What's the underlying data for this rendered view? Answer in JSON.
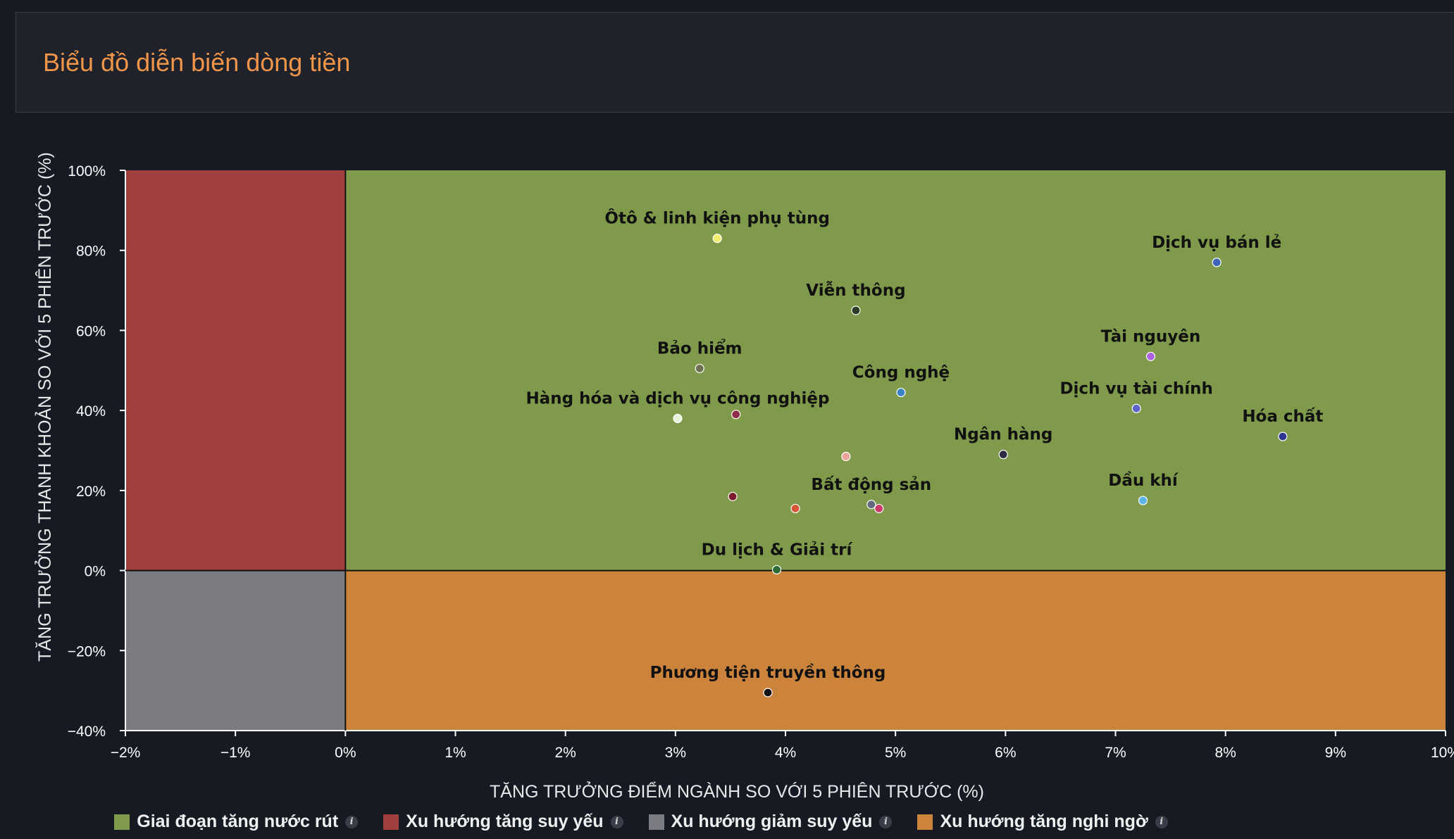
{
  "header": {
    "title": "Biểu đồ diễn biến dòng tiền"
  },
  "chart_data": {
    "type": "scatter",
    "title": "Biểu đồ diễn biến dòng tiền",
    "xlabel": "TĂNG TRƯỞNG ĐIỂM NGÀNH SO VỚI 5 PHIÊN TRƯỚC (%)",
    "ylabel": "TĂNG TRƯỞNG THANH KHOẢN SO VỚI 5 PHIÊN TRƯỚC (%)",
    "xlim": [
      -2,
      10
    ],
    "ylim": [
      -40,
      100
    ],
    "xticks": [
      "−2%",
      "−1%",
      "0%",
      "1%",
      "2%",
      "3%",
      "4%",
      "5%",
      "6%",
      "7%",
      "8%",
      "9%",
      "10%"
    ],
    "yticks": [
      "100%",
      "80%",
      "60%",
      "40%",
      "20%",
      "0%",
      "−20%",
      "−40%"
    ],
    "quadrants": [
      {
        "name": "Giai đoạn tăng nước rút",
        "color": "#7f9a4a",
        "x": [
          0,
          10
        ],
        "y": [
          0,
          100
        ]
      },
      {
        "name": "Xu hướng tăng suy yếu",
        "color": "#a0403e",
        "x": [
          -2,
          0
        ],
        "y": [
          0,
          100
        ]
      },
      {
        "name": "Xu hướng giảm suy yếu",
        "color": "#7b7c82",
        "x": [
          -2,
          0
        ],
        "y": [
          -40,
          0
        ]
      },
      {
        "name": "Xu hướng tăng nghi ngờ",
        "color": "#cc843c",
        "x": [
          0,
          10
        ],
        "y": [
          -40,
          0
        ]
      }
    ],
    "points": [
      {
        "label": "Ôtô & linh kiện phụ tùng",
        "x": 3.38,
        "y": 83,
        "color": "#f2ee6e"
      },
      {
        "label": "Dịch vụ bán lẻ",
        "x": 7.92,
        "y": 77,
        "color": "#3f63b6"
      },
      {
        "label": "Viễn thông",
        "x": 4.64,
        "y": 65,
        "color": "#2a3a26"
      },
      {
        "label": "Tài nguyên",
        "x": 7.32,
        "y": 53.5,
        "color": "#b063e0"
      },
      {
        "label": "Bảo hiểm",
        "x": 3.22,
        "y": 50.5,
        "color": "#6e6e50"
      },
      {
        "label": "Công nghệ",
        "x": 5.05,
        "y": 44.5,
        "color": "#3a82c4"
      },
      {
        "label": "Dịch vụ tài chính",
        "x": 7.19,
        "y": 40.5,
        "color": "#5b63c8"
      },
      {
        "label": "Hàng hóa và dịch vụ công nghiệp",
        "x": 3.02,
        "y": 38,
        "color": "#e8f4e0"
      },
      {
        "label": "",
        "x": 3.55,
        "y": 39,
        "color": "#8e2d4a"
      },
      {
        "label": "Hóa chất",
        "x": 8.52,
        "y": 33.5,
        "color": "#2f3590"
      },
      {
        "label": "Ngân hàng",
        "x": 5.98,
        "y": 29,
        "color": "#2c2c40"
      },
      {
        "label": "",
        "x": 4.55,
        "y": 28.5,
        "color": "#e8a39a"
      },
      {
        "label": "Dầu khí",
        "x": 7.25,
        "y": 17.5,
        "color": "#5bb4e6"
      },
      {
        "label": "Bất động sản",
        "x": 4.78,
        "y": 16.5,
        "color": "#626a7c"
      },
      {
        "label": "",
        "x": 4.85,
        "y": 15.5,
        "color": "#cc3a6a"
      },
      {
        "label": "",
        "x": 4.09,
        "y": 15.5,
        "color": "#d45636"
      },
      {
        "label": "",
        "x": 3.52,
        "y": 18.5,
        "color": "#7c1c30"
      },
      {
        "label": "Du lịch & Giải trí",
        "x": 3.92,
        "y": 0.2,
        "color": "#2e6b35"
      },
      {
        "label": "Phương tiện truyền thông",
        "x": 3.84,
        "y": -30.5,
        "color": "#111111"
      }
    ],
    "legend": [
      {
        "label": "Giai đoạn tăng nước rút",
        "color": "#7f9a4a"
      },
      {
        "label": "Xu hướng tăng suy yếu",
        "color": "#a0403e"
      },
      {
        "label": "Xu hướng giảm suy yếu",
        "color": "#7b7c82"
      },
      {
        "label": "Xu hướng tăng nghi ngờ",
        "color": "#cc843c"
      }
    ],
    "legend_position": "bottom",
    "grid": false
  }
}
